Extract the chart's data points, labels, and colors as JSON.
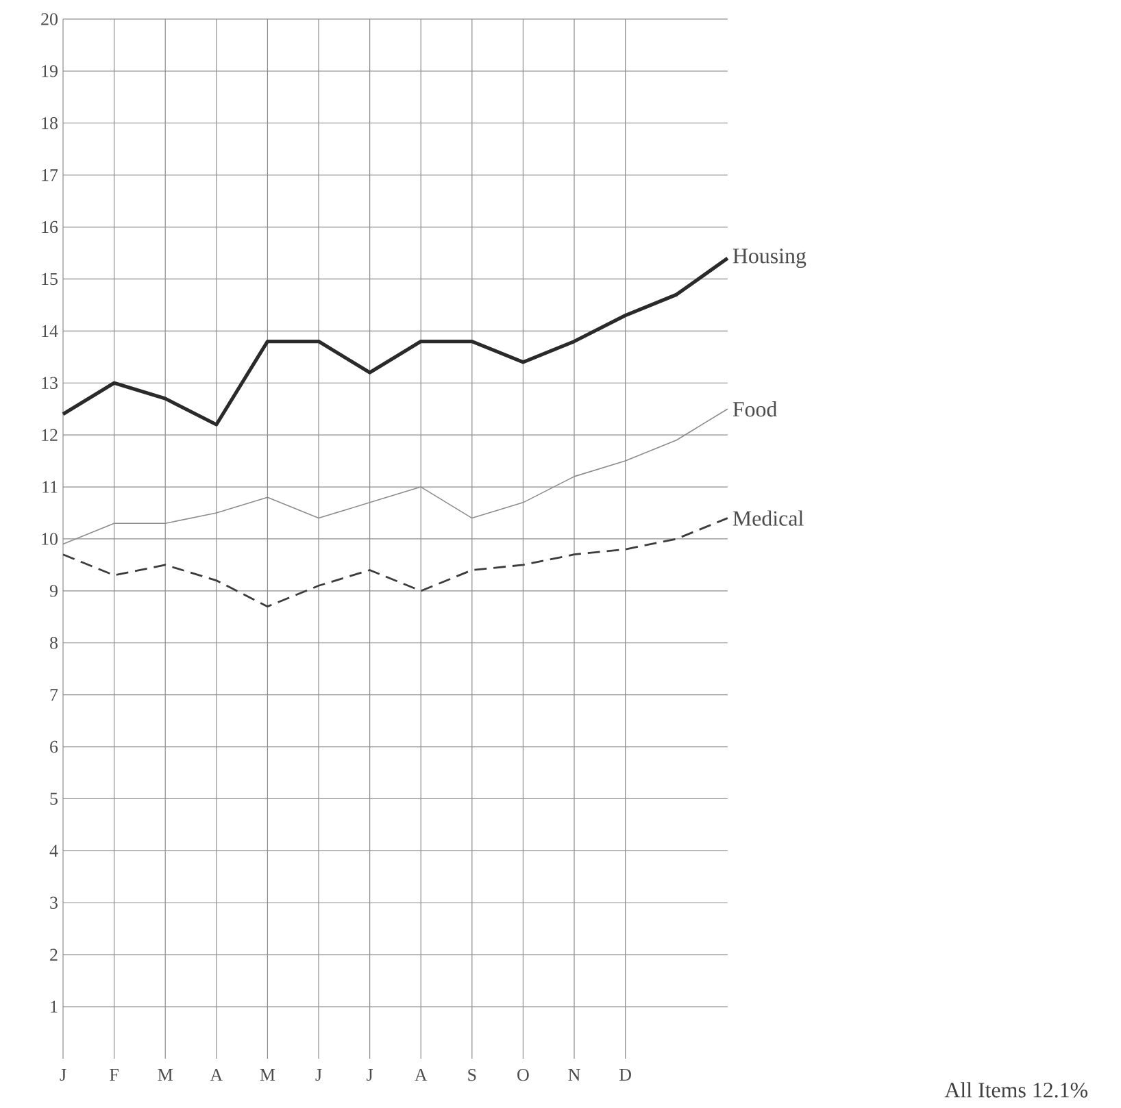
{
  "chart_data": {
    "type": "line",
    "categories": [
      "J",
      "F",
      "M",
      "A",
      "M",
      "J",
      "J",
      "A",
      "S",
      "O",
      "N",
      "D",
      null,
      null
    ],
    "ylim": [
      0,
      20
    ],
    "yticks": [
      1,
      2,
      3,
      4,
      5,
      6,
      7,
      8,
      9,
      10,
      11,
      12,
      13,
      14,
      15,
      16,
      17,
      18,
      19,
      20
    ],
    "grid": true,
    "series": [
      {
        "name": "Housing",
        "color": "#2a2a2a",
        "line_style": "solid",
        "values": [
          12.4,
          13.0,
          12.7,
          12.2,
          13.8,
          13.8,
          13.2,
          13.8,
          13.8,
          13.4,
          13.8,
          14.3,
          14.7,
          15.4
        ]
      },
      {
        "name": "Food",
        "color": "#8c8c8c",
        "line_style": "solid",
        "values": [
          9.9,
          10.3,
          10.3,
          10.5,
          10.8,
          10.4,
          10.7,
          11.0,
          10.4,
          10.7,
          11.2,
          11.5,
          11.9,
          12.5
        ]
      },
      {
        "name": "Medical",
        "color": "#3c3c3c",
        "line_style": "dashed",
        "values": [
          9.7,
          9.3,
          9.5,
          9.2,
          8.7,
          9.1,
          9.4,
          9.0,
          9.4,
          9.5,
          9.7,
          9.8,
          10.0,
          10.4
        ]
      }
    ],
    "annotations": [
      "All Items 12.1%"
    ]
  }
}
